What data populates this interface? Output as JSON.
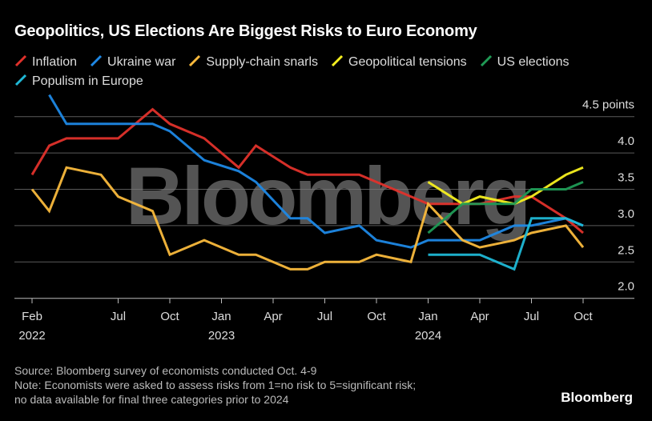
{
  "title": "Geopolitics, US Elections Are Biggest Risks to Euro Economy",
  "chart_data": {
    "type": "line",
    "title": "Geopolitics, US Elections Are Biggest Risks to Euro Economy",
    "ylabel_unit": "points",
    "ylim": [
      2.0,
      4.5
    ],
    "yticks": [
      "4.5 points",
      "4.0",
      "3.5",
      "3.0",
      "2.5",
      "2.0"
    ],
    "ytick_values": [
      4.5,
      4.0,
      3.5,
      3.0,
      2.5,
      2.0
    ],
    "xlim": [
      "2022-02",
      "2024-10"
    ],
    "xticks": [
      {
        "month": "2022-02",
        "label": "Feb",
        "year": "2022"
      },
      {
        "month": "2022-07",
        "label": "Jul",
        "year": ""
      },
      {
        "month": "2022-10",
        "label": "Oct",
        "year": ""
      },
      {
        "month": "2023-01",
        "label": "Jan",
        "year": "2023"
      },
      {
        "month": "2023-04",
        "label": "Apr",
        "year": ""
      },
      {
        "month": "2023-07",
        "label": "Jul",
        "year": ""
      },
      {
        "month": "2023-10",
        "label": "Oct",
        "year": ""
      },
      {
        "month": "2024-01",
        "label": "Jan",
        "year": "2024"
      },
      {
        "month": "2024-04",
        "label": "Apr",
        "year": ""
      },
      {
        "month": "2024-07",
        "label": "Jul",
        "year": ""
      },
      {
        "month": "2024-10",
        "label": "Oct",
        "year": ""
      }
    ],
    "grid": true,
    "legend_placement": "top-left",
    "watermark": "Bloomberg",
    "series": [
      {
        "name": "Inflation",
        "color": "#e0312b",
        "points": [
          [
            "2022-02",
            3.7
          ],
          [
            "2022-03",
            4.1
          ],
          [
            "2022-04",
            4.2
          ],
          [
            "2022-07",
            4.2
          ],
          [
            "2022-09",
            4.6
          ],
          [
            "2022-10",
            4.4
          ],
          [
            "2022-12",
            4.2
          ],
          [
            "2023-02",
            3.8
          ],
          [
            "2023-03",
            4.1
          ],
          [
            "2023-05",
            3.8
          ],
          [
            "2023-06",
            3.7
          ],
          [
            "2023-09",
            3.7
          ],
          [
            "2024-01",
            3.3
          ],
          [
            "2024-02",
            3.3
          ],
          [
            "2024-04",
            3.3
          ],
          [
            "2024-06",
            3.4
          ],
          [
            "2024-07",
            3.4
          ],
          [
            "2024-09",
            3.1
          ],
          [
            "2024-10",
            2.9
          ]
        ]
      },
      {
        "name": "Ukraine war",
        "color": "#1e88e5",
        "points": [
          [
            "2022-03",
            4.8
          ],
          [
            "2022-04",
            4.4
          ],
          [
            "2022-09",
            4.4
          ],
          [
            "2022-10",
            4.3
          ],
          [
            "2022-12",
            3.9
          ],
          [
            "2023-02",
            3.75
          ],
          [
            "2023-03",
            3.6
          ],
          [
            "2023-05",
            3.1
          ],
          [
            "2023-06",
            3.1
          ],
          [
            "2023-07",
            2.9
          ],
          [
            "2023-09",
            3.0
          ],
          [
            "2023-10",
            2.8
          ],
          [
            "2023-12",
            2.7
          ],
          [
            "2024-01",
            2.8
          ],
          [
            "2024-04",
            2.8
          ],
          [
            "2024-06",
            3.0
          ],
          [
            "2024-07",
            3.0
          ],
          [
            "2024-09",
            3.1
          ],
          [
            "2024-10",
            3.0
          ]
        ]
      },
      {
        "name": "Supply-chain snarls",
        "color": "#f9b93c",
        "points": [
          [
            "2022-02",
            3.5
          ],
          [
            "2022-03",
            3.2
          ],
          [
            "2022-04",
            3.8
          ],
          [
            "2022-06",
            3.7
          ],
          [
            "2022-07",
            3.4
          ],
          [
            "2022-09",
            3.2
          ],
          [
            "2022-10",
            2.6
          ],
          [
            "2022-12",
            2.8
          ],
          [
            "2023-02",
            2.6
          ],
          [
            "2023-03",
            2.6
          ],
          [
            "2023-05",
            2.4
          ],
          [
            "2023-06",
            2.4
          ],
          [
            "2023-07",
            2.5
          ],
          [
            "2023-09",
            2.5
          ],
          [
            "2023-10",
            2.6
          ],
          [
            "2023-12",
            2.5
          ],
          [
            "2024-01",
            3.3
          ],
          [
            "2024-03",
            2.8
          ],
          [
            "2024-04",
            2.7
          ],
          [
            "2024-06",
            2.8
          ],
          [
            "2024-07",
            2.9
          ],
          [
            "2024-09",
            3.0
          ],
          [
            "2024-10",
            2.7
          ]
        ]
      },
      {
        "name": "Geopolitical tensions",
        "color": "#f7f01f",
        "points": [
          [
            "2024-01",
            3.6
          ],
          [
            "2024-03",
            3.3
          ],
          [
            "2024-04",
            3.4
          ],
          [
            "2024-06",
            3.3
          ],
          [
            "2024-07",
            3.4
          ],
          [
            "2024-09",
            3.7
          ],
          [
            "2024-10",
            3.8
          ]
        ]
      },
      {
        "name": "US elections",
        "color": "#1f9a55",
        "points": [
          [
            "2024-01",
            2.9
          ],
          [
            "2024-03",
            3.3
          ],
          [
            "2024-04",
            3.3
          ],
          [
            "2024-06",
            3.3
          ],
          [
            "2024-07",
            3.5
          ],
          [
            "2024-09",
            3.5
          ],
          [
            "2024-10",
            3.6
          ]
        ]
      },
      {
        "name": "Populism in Europe",
        "color": "#1fb8d6",
        "points": [
          [
            "2024-01",
            2.6
          ],
          [
            "2024-04",
            2.6
          ],
          [
            "2024-06",
            2.4
          ],
          [
            "2024-07",
            3.1
          ],
          [
            "2024-09",
            3.1
          ],
          [
            "2024-10",
            3.0
          ]
        ]
      }
    ]
  },
  "notes": {
    "source": "Source: Bloomberg survey of economists conducted Oct. 4-9",
    "note_line1": "Note: Economists were asked to assess risks from 1=no risk to 5=significant risk;",
    "note_line2": "no data available for final three categories prior to 2024"
  },
  "logo": "Bloomberg"
}
